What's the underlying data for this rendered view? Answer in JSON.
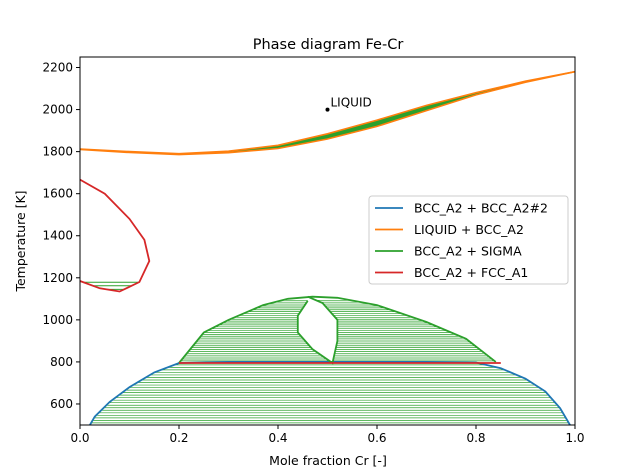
{
  "chart_data": {
    "type": "line",
    "title": "Phase diagram Fe-Cr",
    "xlabel": "Mole fraction Cr [-]",
    "ylabel": "Temperature [K]",
    "xlim": [
      0,
      1
    ],
    "ylim": [
      500,
      2250
    ],
    "xticks": [
      "0.0",
      "0.2",
      "0.4",
      "0.6",
      "0.8",
      "1.0"
    ],
    "yticks": [
      "600",
      "800",
      "1000",
      "1200",
      "1400",
      "1600",
      "1800",
      "2000",
      "2200"
    ],
    "grid": false,
    "legend_position": "center-right",
    "series": [
      {
        "name": "BCC_A2 + BCC_A2#2",
        "color": "#1f77b4",
        "boundary": [
          [
            0.02,
            500
          ],
          [
            0.03,
            540
          ],
          [
            0.06,
            610
          ],
          [
            0.1,
            680
          ],
          [
            0.15,
            750
          ],
          [
            0.2,
            795
          ],
          [
            0.3,
            800
          ],
          [
            0.4,
            800
          ],
          [
            0.5,
            800
          ],
          [
            0.6,
            800
          ],
          [
            0.7,
            800
          ],
          [
            0.8,
            797
          ],
          [
            0.85,
            770
          ],
          [
            0.9,
            720
          ],
          [
            0.94,
            660
          ],
          [
            0.97,
            580
          ],
          [
            0.99,
            500
          ]
        ]
      },
      {
        "name": "LIQUID + BCC_A2",
        "color": "#ff7f0e",
        "liquidus": [
          [
            0,
            1812
          ],
          [
            0.1,
            1800
          ],
          [
            0.2,
            1790
          ],
          [
            0.3,
            1802
          ],
          [
            0.4,
            1830
          ],
          [
            0.5,
            1885
          ],
          [
            0.6,
            1950
          ],
          [
            0.7,
            2020
          ],
          [
            0.8,
            2080
          ],
          [
            0.9,
            2135
          ],
          [
            1.0,
            2180
          ]
        ],
        "solidus": [
          [
            0,
            1810
          ],
          [
            0.1,
            1796
          ],
          [
            0.2,
            1786
          ],
          [
            0.3,
            1795
          ],
          [
            0.4,
            1815
          ],
          [
            0.5,
            1860
          ],
          [
            0.6,
            1920
          ],
          [
            0.7,
            1995
          ],
          [
            0.8,
            2070
          ],
          [
            0.9,
            2130
          ],
          [
            1.0,
            2180
          ]
        ]
      },
      {
        "name": "BCC_A2 + SIGMA",
        "color": "#2ca02c",
        "outer": [
          [
            0.2,
            795
          ],
          [
            0.25,
            940
          ],
          [
            0.3,
            1000
          ],
          [
            0.37,
            1070
          ],
          [
            0.42,
            1100
          ],
          [
            0.47,
            1110
          ],
          [
            0.52,
            1105
          ],
          [
            0.6,
            1070
          ],
          [
            0.7,
            990
          ],
          [
            0.78,
            910
          ],
          [
            0.84,
            800
          ]
        ],
        "inner": [
          [
            0.46,
            1110
          ],
          [
            0.49,
            1080
          ],
          [
            0.52,
            1000
          ],
          [
            0.52,
            900
          ],
          [
            0.51,
            795
          ],
          [
            0.47,
            860
          ],
          [
            0.44,
            940
          ],
          [
            0.44,
            1020
          ],
          [
            0.46,
            1090
          ]
        ]
      },
      {
        "name": "BCC_A2 + FCC_A1",
        "color": "#d62728",
        "loop": [
          [
            0,
            1667
          ],
          [
            0.05,
            1600
          ],
          [
            0.1,
            1480
          ],
          [
            0.13,
            1380
          ],
          [
            0.14,
            1280
          ],
          [
            0.12,
            1180
          ],
          [
            0.08,
            1135
          ],
          [
            0.04,
            1150
          ],
          [
            0,
            1185
          ]
        ],
        "eutectoid_line": [
          [
            0.2,
            795
          ],
          [
            0.85,
            795
          ]
        ]
      }
    ],
    "annotations": [
      {
        "text": "LIQUID",
        "x": 0.5,
        "y": 2000
      }
    ]
  }
}
